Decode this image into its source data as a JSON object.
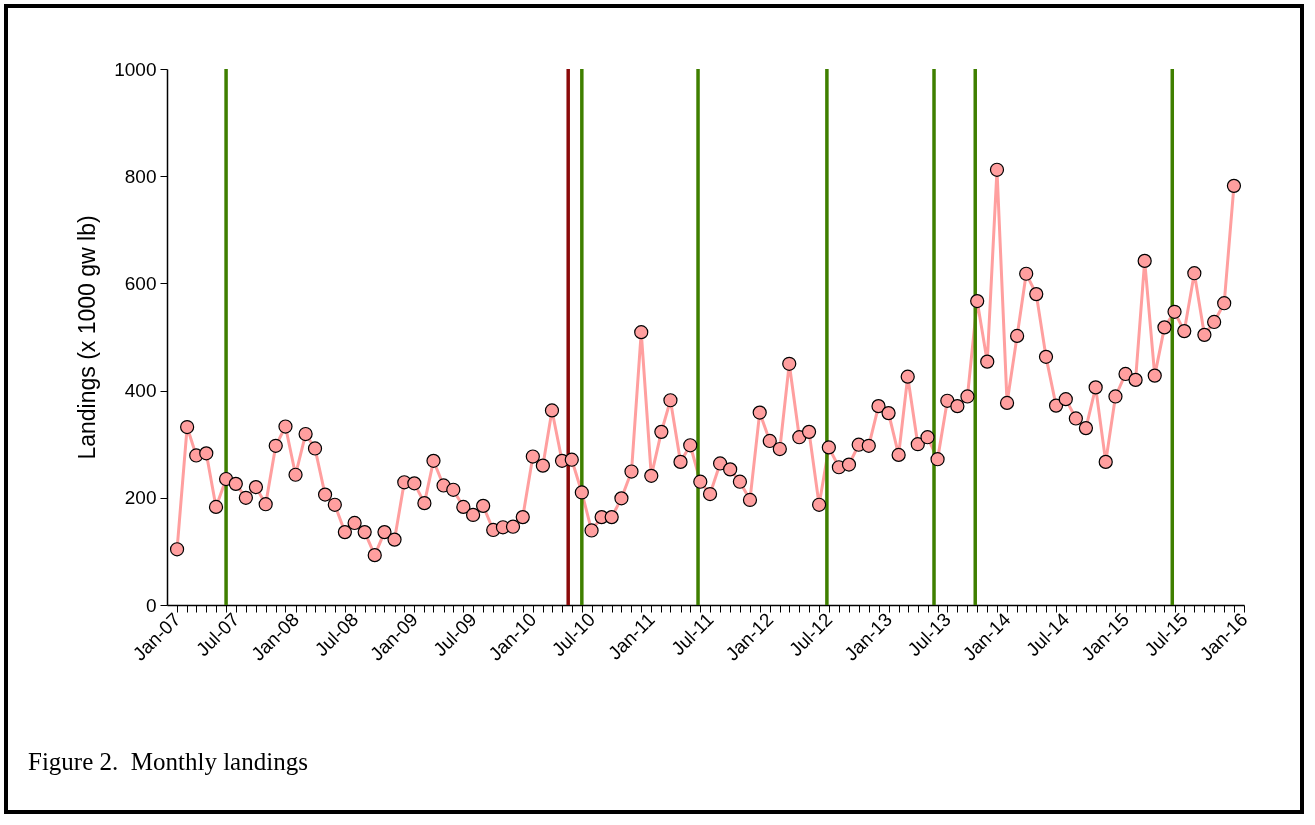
{
  "chart_data": {
    "type": "line",
    "ylabel": "Landings (x 1000 gw lb)",
    "annotations": [
      "Figure 2.  Monthly landings"
    ],
    "x": [
      "2007-01",
      "2007-02",
      "2007-03",
      "2007-04",
      "2007-05",
      "2007-06",
      "2007-07",
      "2007-08",
      "2007-09",
      "2007-10",
      "2007-11",
      "2007-12",
      "2008-01",
      "2008-02",
      "2008-03",
      "2008-04",
      "2008-05",
      "2008-06",
      "2008-07",
      "2008-08",
      "2008-09",
      "2008-10",
      "2008-11",
      "2008-12",
      "2009-01",
      "2009-02",
      "2009-03",
      "2009-04",
      "2009-05",
      "2009-06",
      "2009-07",
      "2009-08",
      "2009-09",
      "2009-10",
      "2009-11",
      "2009-12",
      "2010-01",
      "2010-02",
      "2010-03",
      "2010-04",
      "2010-05",
      "2010-06",
      "2010-07",
      "2010-08",
      "2010-09",
      "2010-10",
      "2010-11",
      "2010-12",
      "2011-01",
      "2011-02",
      "2011-03",
      "2011-04",
      "2011-05",
      "2011-06",
      "2011-07",
      "2011-08",
      "2011-09",
      "2011-10",
      "2011-11",
      "2011-12",
      "2012-01",
      "2012-02",
      "2012-03",
      "2012-04",
      "2012-05",
      "2012-06",
      "2012-07",
      "2012-08",
      "2012-09",
      "2012-10",
      "2012-11",
      "2012-12",
      "2013-01",
      "2013-02",
      "2013-03",
      "2013-04",
      "2013-05",
      "2013-06",
      "2013-07",
      "2013-08",
      "2013-09",
      "2013-10",
      "2013-11",
      "2013-12",
      "2014-01",
      "2014-02",
      "2014-03",
      "2014-04",
      "2014-05",
      "2014-06",
      "2014-07",
      "2014-08",
      "2014-09",
      "2014-10",
      "2014-11",
      "2014-12",
      "2015-01",
      "2015-02",
      "2015-03",
      "2015-04",
      "2015-05",
      "2015-06",
      "2015-07",
      "2015-08",
      "2015-09",
      "2015-10",
      "2015-11",
      "2015-12"
    ],
    "series": [
      {
        "color": "#ff9f9f",
        "values": [
          104,
          332,
          279,
          283,
          183,
          235,
          226,
          200,
          220,
          188,
          297,
          333,
          243,
          319,
          292,
          206,
          187,
          136,
          153,
          136,
          93,
          136,
          122,
          229,
          227,
          190,
          269,
          223,
          215,
          183,
          168,
          185,
          140,
          145,
          146,
          164,
          277,
          260,
          363,
          269,
          271,
          210,
          139,
          164,
          164,
          199,
          249,
          509,
          241,
          323,
          382,
          267,
          298,
          230,
          207,
          264,
          253,
          230,
          196,
          359,
          306,
          291,
          450,
          313,
          323,
          187,
          294,
          257,
          262,
          299,
          297,
          371,
          358,
          280,
          426,
          300,
          313,
          272,
          381,
          371,
          389,
          567,
          454,
          812,
          377,
          502,
          618,
          580,
          463,
          372,
          384,
          348,
          330,
          406,
          267,
          389,
          431,
          420,
          642,
          428,
          518,
          547,
          511,
          619,
          504,
          528,
          563,
          782
        ]
      }
    ],
    "marker": "circle",
    "xlim": [
      "2006-12",
      "2016-01"
    ],
    "xticks": [
      {
        "value": "2007-01",
        "label": "Jan-07"
      },
      {
        "value": "2007-02",
        "label": null
      },
      {
        "value": "2007-03",
        "label": null
      },
      {
        "value": "2007-04",
        "label": null
      },
      {
        "value": "2007-05",
        "label": null
      },
      {
        "value": "2007-06",
        "label": null
      },
      {
        "value": "2007-07",
        "label": "Jul-07"
      },
      {
        "value": "2007-08",
        "label": null
      },
      {
        "value": "2007-09",
        "label": null
      },
      {
        "value": "2007-10",
        "label": null
      },
      {
        "value": "2007-11",
        "label": null
      },
      {
        "value": "2007-12",
        "label": null
      },
      {
        "value": "2008-01",
        "label": "Jan-08"
      },
      {
        "value": "2008-02",
        "label": null
      },
      {
        "value": "2008-03",
        "label": null
      },
      {
        "value": "2008-04",
        "label": null
      },
      {
        "value": "2008-05",
        "label": null
      },
      {
        "value": "2008-06",
        "label": null
      },
      {
        "value": "2008-07",
        "label": "Jul-08"
      },
      {
        "value": "2008-08",
        "label": null
      },
      {
        "value": "2008-09",
        "label": null
      },
      {
        "value": "2008-10",
        "label": null
      },
      {
        "value": "2008-11",
        "label": null
      },
      {
        "value": "2008-12",
        "label": null
      },
      {
        "value": "2009-01",
        "label": "Jan-09"
      },
      {
        "value": "2009-02",
        "label": null
      },
      {
        "value": "2009-03",
        "label": null
      },
      {
        "value": "2009-04",
        "label": null
      },
      {
        "value": "2009-05",
        "label": null
      },
      {
        "value": "2009-06",
        "label": null
      },
      {
        "value": "2009-07",
        "label": "Jul-09"
      },
      {
        "value": "2009-08",
        "label": null
      },
      {
        "value": "2009-09",
        "label": null
      },
      {
        "value": "2009-10",
        "label": null
      },
      {
        "value": "2009-11",
        "label": null
      },
      {
        "value": "2009-12",
        "label": null
      },
      {
        "value": "2010-01",
        "label": "Jan-10"
      },
      {
        "value": "2010-02",
        "label": null
      },
      {
        "value": "2010-03",
        "label": null
      },
      {
        "value": "2010-04",
        "label": null
      },
      {
        "value": "2010-05",
        "label": null
      },
      {
        "value": "2010-06",
        "label": null
      },
      {
        "value": "2010-07",
        "label": "Jul-10"
      },
      {
        "value": "2010-08",
        "label": null
      },
      {
        "value": "2010-09",
        "label": null
      },
      {
        "value": "2010-10",
        "label": null
      },
      {
        "value": "2010-11",
        "label": null
      },
      {
        "value": "2010-12",
        "label": null
      },
      {
        "value": "2011-01",
        "label": "Jan-11"
      },
      {
        "value": "2011-02",
        "label": null
      },
      {
        "value": "2011-03",
        "label": null
      },
      {
        "value": "2011-04",
        "label": null
      },
      {
        "value": "2011-05",
        "label": null
      },
      {
        "value": "2011-06",
        "label": null
      },
      {
        "value": "2011-07",
        "label": "Jul-11"
      },
      {
        "value": "2011-08",
        "label": null
      },
      {
        "value": "2011-09",
        "label": null
      },
      {
        "value": "2011-10",
        "label": null
      },
      {
        "value": "2011-11",
        "label": null
      },
      {
        "value": "2011-12",
        "label": null
      },
      {
        "value": "2012-01",
        "label": "Jan-12"
      },
      {
        "value": "2012-02",
        "label": null
      },
      {
        "value": "2012-03",
        "label": null
      },
      {
        "value": "2012-04",
        "label": null
      },
      {
        "value": "2012-05",
        "label": null
      },
      {
        "value": "2012-06",
        "label": null
      },
      {
        "value": "2012-07",
        "label": "Jul-12"
      },
      {
        "value": "2012-08",
        "label": null
      },
      {
        "value": "2012-09",
        "label": null
      },
      {
        "value": "2012-10",
        "label": null
      },
      {
        "value": "2012-11",
        "label": null
      },
      {
        "value": "2012-12",
        "label": null
      },
      {
        "value": "2013-01",
        "label": "Jan-13"
      },
      {
        "value": "2013-02",
        "label": null
      },
      {
        "value": "2013-03",
        "label": null
      },
      {
        "value": "2013-04",
        "label": null
      },
      {
        "value": "2013-05",
        "label": null
      },
      {
        "value": "2013-06",
        "label": null
      },
      {
        "value": "2013-07",
        "label": "Jul-13"
      },
      {
        "value": "2013-08",
        "label": null
      },
      {
        "value": "2013-09",
        "label": null
      },
      {
        "value": "2013-10",
        "label": null
      },
      {
        "value": "2013-11",
        "label": null
      },
      {
        "value": "2013-12",
        "label": null
      },
      {
        "value": "2014-01",
        "label": "Jan-14"
      },
      {
        "value": "2014-02",
        "label": null
      },
      {
        "value": "2014-03",
        "label": null
      },
      {
        "value": "2014-04",
        "label": null
      },
      {
        "value": "2014-05",
        "label": null
      },
      {
        "value": "2014-06",
        "label": null
      },
      {
        "value": "2014-07",
        "label": "Jul-14"
      },
      {
        "value": "2014-08",
        "label": null
      },
      {
        "value": "2014-09",
        "label": null
      },
      {
        "value": "2014-10",
        "label": null
      },
      {
        "value": "2014-11",
        "label": null
      },
      {
        "value": "2014-12",
        "label": null
      },
      {
        "value": "2015-01",
        "label": "Jan-15"
      },
      {
        "value": "2015-02",
        "label": null
      },
      {
        "value": "2015-03",
        "label": null
      },
      {
        "value": "2015-04",
        "label": null
      },
      {
        "value": "2015-05",
        "label": null
      },
      {
        "value": "2015-06",
        "label": null
      },
      {
        "value": "2015-07",
        "label": "Jul-15"
      },
      {
        "value": "2015-08",
        "label": null
      },
      {
        "value": "2015-09",
        "label": null
      },
      {
        "value": "2015-10",
        "label": null
      },
      {
        "value": "2015-11",
        "label": null
      },
      {
        "value": "2015-12",
        "label": null
      },
      {
        "value": "2016-01",
        "label": "Jan-16"
      }
    ],
    "ylim": [
      0,
      1000
    ],
    "yticks": [
      0,
      200,
      400,
      600,
      800,
      1000
    ],
    "ref_lines": [
      {
        "axis": "x",
        "value": "2007-06-01",
        "color": "#3f7f00"
      },
      {
        "axis": "x",
        "value": "2010-04-20",
        "color": "#8b0a0a"
      },
      {
        "axis": "x",
        "value": "2010-06-01",
        "color": "#3f7f00"
      },
      {
        "axis": "x",
        "value": "2011-05-25",
        "color": "#3f7f00"
      },
      {
        "axis": "x",
        "value": "2012-06-25",
        "color": "#3f7f00"
      },
      {
        "axis": "x",
        "value": "2013-05-21",
        "color": "#3f7f00"
      },
      {
        "axis": "x",
        "value": "2013-09-25",
        "color": "#3f7f00"
      },
      {
        "axis": "x",
        "value": "2015-05-25",
        "color": "#3f7f00"
      }
    ]
  }
}
